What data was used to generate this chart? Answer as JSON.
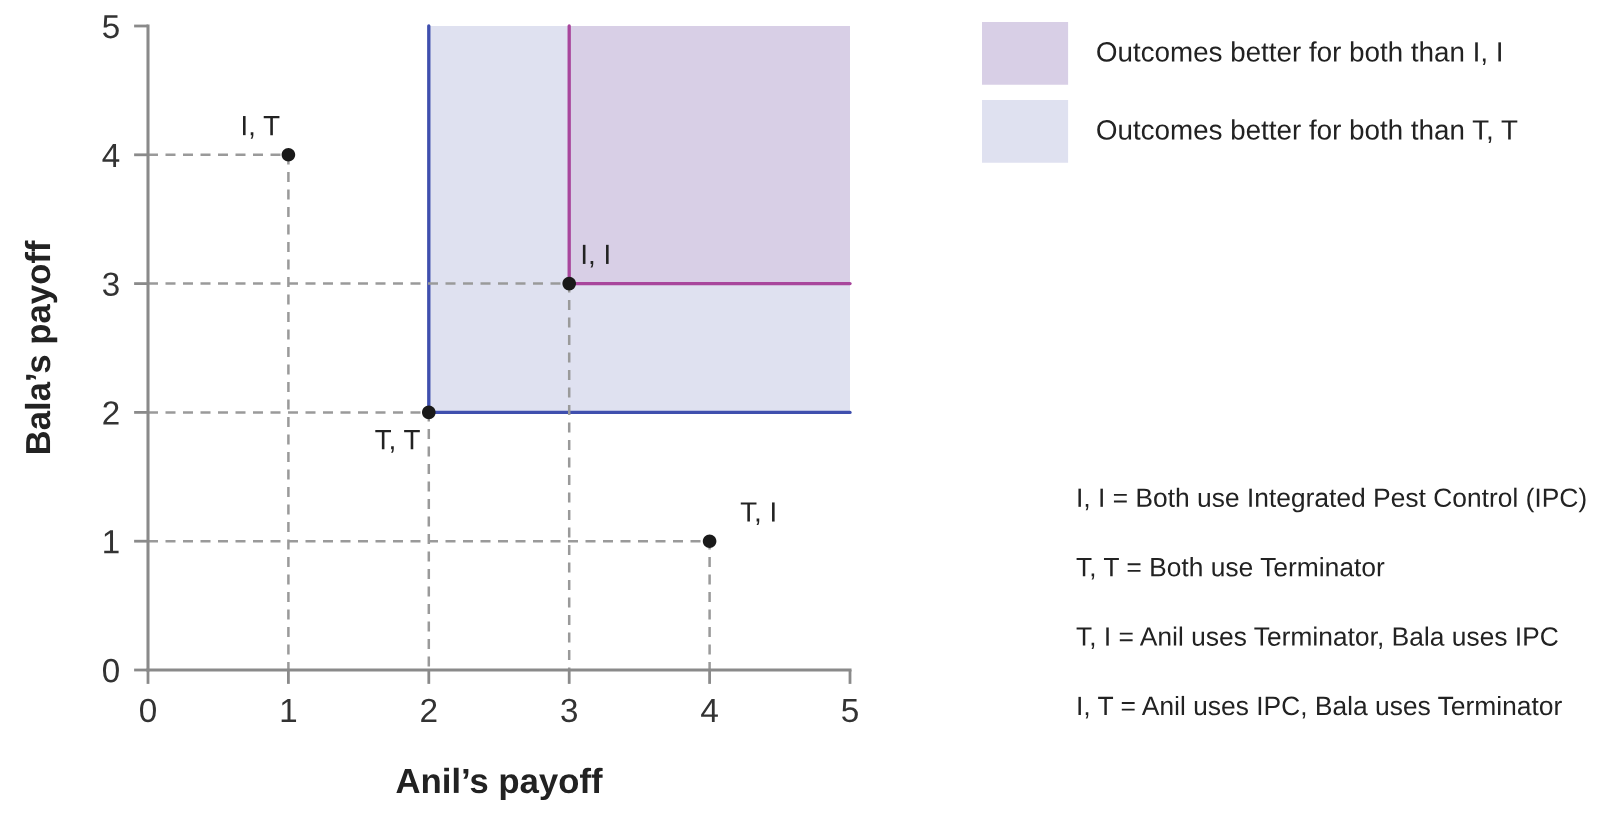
{
  "chart_data": {
    "type": "line",
    "xlabel": "Anil’s payoff",
    "ylabel": "Bala’s payoff",
    "xlim": [
      0,
      5
    ],
    "ylim": [
      0,
      5
    ],
    "xticks": [
      0,
      1,
      2,
      3,
      4,
      5
    ],
    "yticks": [
      0,
      1,
      2,
      3,
      4,
      5
    ],
    "legend": "top right",
    "series": [
      {
        "type": "area",
        "name": "Outcomes better for both than T, T",
        "color": "#dfe1f0",
        "x": [
          2,
          5
        ],
        "values": [
          null,
          null
        ],
        "lower": [
          2,
          2
        ],
        "upper": [
          5,
          5
        ]
      },
      {
        "type": "area",
        "name": "Outcomes better for both than I, I",
        "color": "#d8cfe6",
        "x": [
          3,
          5
        ],
        "values": [
          null,
          null
        ],
        "lower": [
          3,
          3
        ],
        "upper": [
          5,
          5
        ]
      },
      {
        "color": "#3f4fae",
        "x": [
          2,
          2
        ],
        "values": [
          5,
          2
        ]
      },
      {
        "color": "#3f4fae",
        "x": [
          2,
          5
        ],
        "values": [
          2,
          2
        ]
      },
      {
        "color": "#a8469c",
        "x": [
          3,
          3
        ],
        "values": [
          5,
          3
        ]
      },
      {
        "color": "#a8469c",
        "x": [
          3,
          5
        ],
        "values": [
          3,
          3
        ]
      },
      {
        "color": "#9a9a9a",
        "line_style": "dashed",
        "x": [
          0,
          1,
          1
        ],
        "values": [
          4,
          4,
          0
        ]
      },
      {
        "color": "#9a9a9a",
        "line_style": "dashed",
        "x": [
          0,
          2,
          2
        ],
        "values": [
          2,
          2,
          0
        ]
      },
      {
        "color": "#9a9a9a",
        "line_style": "dashed",
        "x": [
          0,
          3,
          3
        ],
        "values": [
          3,
          3,
          0
        ]
      },
      {
        "color": "#9a9a9a",
        "line_style": "dashed",
        "x": [
          0,
          4,
          4
        ],
        "values": [
          1,
          1,
          0
        ]
      },
      {
        "type": "scatter",
        "color": "#1a1a1a",
        "marker": "circle",
        "x": [
          1,
          2,
          3,
          4
        ],
        "values": [
          4,
          2,
          3,
          1
        ]
      }
    ],
    "annotations": [
      {
        "text": "I, T",
        "x": 1,
        "y": 4
      },
      {
        "text": "T, T",
        "x": 2,
        "y": 2
      },
      {
        "text": "I, I",
        "x": 3,
        "y": 3
      },
      {
        "text": "T, I",
        "x": 4,
        "y": 1
      },
      "I, I = Both use Integrated Pest Control (IPC)",
      "T, T = Both use Terminator",
      "T, I = Anil uses Terminator, Bala uses IPC",
      "I, T = Anil uses IPC, Bala uses Terminator"
    ]
  }
}
